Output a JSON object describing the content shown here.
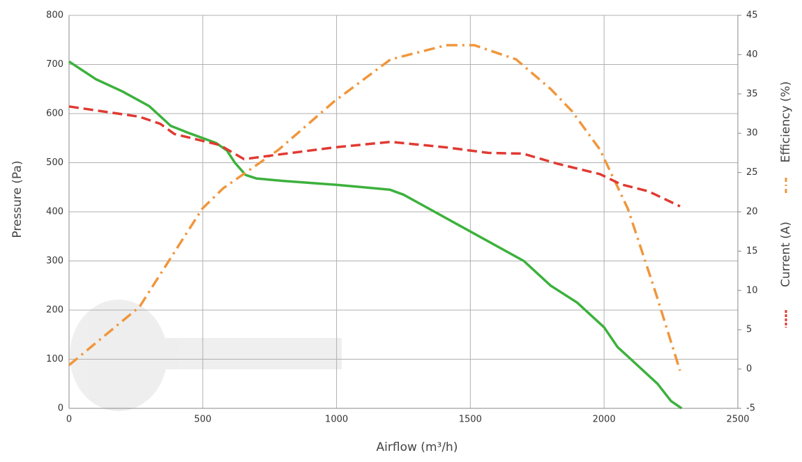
{
  "chart_data": {
    "type": "line",
    "xlabel": "Airflow (m³/h)",
    "ylabel": "Pressure (Pa)",
    "xlim": [
      0,
      2500
    ],
    "xticks": [
      0,
      500,
      1000,
      1500,
      2000,
      2500
    ],
    "ylim": [
      0,
      800
    ],
    "yticks": [
      0,
      100,
      200,
      300,
      400,
      500,
      600,
      700,
      800
    ],
    "y2lim": [
      -5,
      45
    ],
    "y2ticks": [
      -5,
      0,
      5,
      10,
      15,
      20,
      25,
      30,
      35,
      40,
      45
    ],
    "grid": true,
    "series": [
      {
        "name": "Pressure (Pa)",
        "color": "#3cb13c",
        "axis": "y",
        "dash": "solid",
        "x": [
          0,
          100,
          200,
          300,
          350,
          380,
          450,
          550,
          590,
          620,
          660,
          700,
          800,
          1000,
          1200,
          1250,
          1300,
          1500,
          1700,
          1800,
          1900,
          2000,
          2050,
          2100,
          2200,
          2250,
          2290
        ],
        "values": [
          706,
          670,
          645,
          615,
          590,
          575,
          560,
          540,
          525,
          500,
          475,
          468,
          463,
          455,
          445,
          435,
          420,
          360,
          300,
          250,
          215,
          165,
          125,
          100,
          50,
          15,
          0
        ]
      },
      {
        "name": "Efficiency (%)",
        "color": "#f0963c",
        "axis": "y2",
        "dash": "dashdot",
        "x": [
          0,
          263,
          498,
          576,
          652,
          783,
          993,
          1202,
          1410,
          1515,
          1671,
          1801,
          1880,
          1985,
          2089,
          2193,
          2284
        ],
        "values": [
          0.5,
          7.9,
          20.4,
          23.0,
          24.8,
          27.9,
          34.1,
          39.4,
          41.2,
          41.2,
          39.4,
          35.6,
          32.8,
          27.9,
          20.4,
          9.7,
          -0.2
        ]
      },
      {
        "name": "Current (A)",
        "color": "#e03a32",
        "axis": "y2",
        "dash": "dashed",
        "x": [
          0,
          263,
          341,
          394,
          563,
          654,
          785,
          993,
          1202,
          1410,
          1567,
          1697,
          1828,
          1985,
          2063,
          2167,
          2284
        ],
        "values": [
          33.4,
          32.1,
          31.2,
          29.9,
          28.5,
          26.7,
          27.3,
          28.2,
          28.9,
          28.2,
          27.5,
          27.4,
          26.1,
          24.8,
          23.5,
          22.6,
          20.7
        ]
      }
    ]
  }
}
